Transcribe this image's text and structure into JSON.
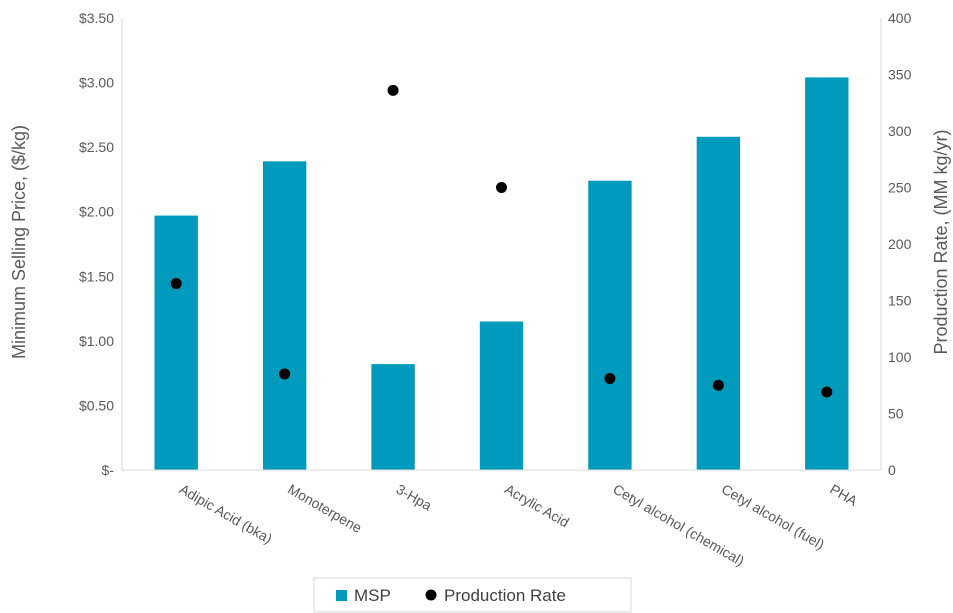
{
  "chart_data": {
    "type": "bar",
    "categories": [
      "Adipic Acid (bka)",
      "Monoterpene",
      "3-Hpa",
      "Acrylic Acid",
      "Cetyl alcohol (chemical)",
      "Cetyl alcohol (fuel)",
      "PHA"
    ],
    "series": [
      {
        "name": "MSP",
        "type": "bar",
        "axis": "left",
        "color": "#009ABC",
        "values": [
          1.97,
          2.39,
          0.82,
          1.15,
          2.24,
          2.58,
          3.04
        ]
      },
      {
        "name": "Production Rate",
        "type": "scatter",
        "axis": "right",
        "color": "#000000",
        "values": [
          165,
          85,
          336,
          250,
          81,
          75,
          69
        ]
      }
    ],
    "ylabel": "Minimum Selling Price, ($/kg)",
    "y2label": "Production Rate, (MM kg/yr)",
    "ylim": [
      0,
      3.5
    ],
    "y2lim": [
      0,
      400
    ],
    "yticks": [
      "$-",
      "$0.50",
      "$1.00",
      "$1.50",
      "$2.00",
      "$2.50",
      "$3.00",
      "$3.50"
    ],
    "y2ticks": [
      "0",
      "50",
      "100",
      "150",
      "200",
      "250",
      "300",
      "350",
      "400"
    ],
    "grid": false,
    "legend_position": "bottom-center"
  }
}
